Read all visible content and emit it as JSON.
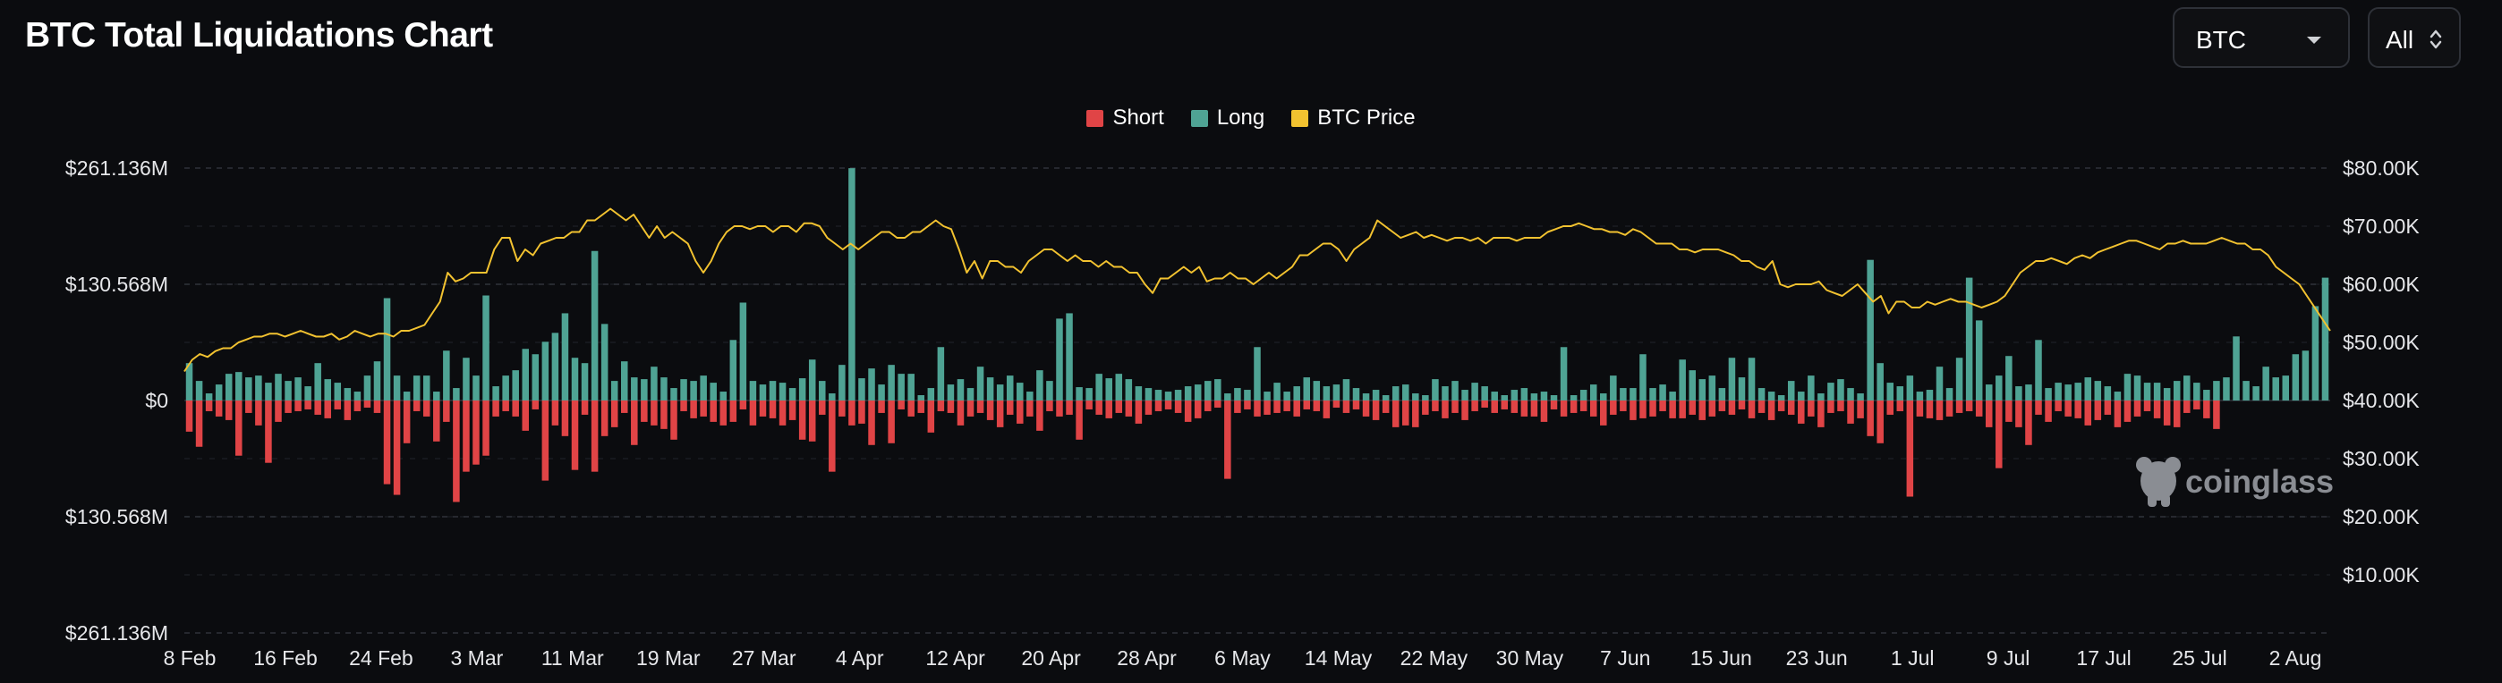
{
  "header": {
    "title": "BTC Total Liquidations Chart",
    "coin_select": "BTC",
    "range_select": "All"
  },
  "watermark": "coinglass",
  "colors": {
    "short": "#e04446",
    "long": "#4fa394",
    "price": "#f2c230",
    "grid": "#2f323a"
  },
  "chart_data": {
    "type": "bar",
    "title": "BTC Total Liquidations Chart",
    "legend_position": "top-center",
    "legend": [
      "Short",
      "Long",
      "BTC Price"
    ],
    "grid": true,
    "x_tick_labels": [
      "8 Feb",
      "16 Feb",
      "24 Feb",
      "3 Mar",
      "11 Mar",
      "19 Mar",
      "27 Mar",
      "4 Apr",
      "12 Apr",
      "20 Apr",
      "28 Apr",
      "6 May",
      "14 May",
      "22 May",
      "30 May",
      "7 Jun",
      "15 Jun",
      "23 Jun",
      "1 Jul",
      "9 Jul",
      "17 Jul",
      "25 Jul",
      "2 Aug"
    ],
    "y_left_tick_labels": [
      "$261.136M",
      "$130.568M",
      "$0",
      "$130.568M",
      "$261.136M"
    ],
    "y_left_range": [
      -261.136,
      261.136
    ],
    "y_left_unit": "M USD",
    "y_right_tick_labels": [
      "$80.00K",
      "$70.00K",
      "$60.00K",
      "$50.00K",
      "$40.00K",
      "$30.00K",
      "$20.00K",
      "$10.00K"
    ],
    "y_right_range": [
      0,
      80
    ],
    "y_right_unit": "K USD",
    "x_start": "8 Feb",
    "series": [
      {
        "name": "Long",
        "values": [
          42,
          22,
          8,
          18,
          30,
          32,
          26,
          28,
          20,
          30,
          22,
          26,
          16,
          42,
          24,
          20,
          14,
          10,
          28,
          44,
          115,
          28,
          10,
          28,
          28,
          10,
          56,
          14,
          48,
          28,
          118,
          16,
          28,
          34,
          58,
          52,
          66,
          76,
          98,
          48,
          42,
          168,
          86,
          22,
          44,
          26,
          24,
          38,
          26,
          14,
          24,
          22,
          28,
          20,
          10,
          68,
          110,
          22,
          18,
          22,
          20,
          14,
          25,
          46,
          22,
          8,
          40,
          261,
          25,
          36,
          18,
          40,
          30,
          30,
          6,
          14,
          60,
          18,
          24,
          14,
          38,
          26,
          18,
          28,
          20,
          10,
          34,
          22,
          92,
          98,
          15,
          14,
          30,
          25,
          30,
          24,
          16,
          14,
          12,
          10,
          12,
          16,
          18,
          22,
          24,
          8,
          14,
          12,
          60,
          10,
          20,
          10,
          16,
          26,
          22,
          16,
          18,
          24,
          14,
          8,
          12,
          6,
          16,
          18,
          8,
          6,
          24,
          16,
          22,
          12,
          20,
          16,
          10,
          6,
          12,
          14,
          8,
          10,
          6,
          60,
          6,
          12,
          18,
          8,
          28,
          14,
          14,
          52,
          14,
          18,
          10,
          46,
          34,
          24,
          28,
          14,
          48,
          26,
          48,
          14,
          10,
          6,
          22,
          10,
          28,
          8,
          20,
          24,
          14,
          8,
          158,
          42,
          20,
          16,
          28,
          10,
          12,
          38,
          14,
          48,
          138,
          90,
          18,
          28,
          50,
          16,
          18,
          68,
          14,
          20,
          18,
          20,
          26,
          22,
          16,
          10,
          30,
          28,
          20,
          20,
          14,
          22,
          28,
          20,
          12,
          22,
          26,
          72,
          22,
          16,
          38,
          26,
          28,
          52,
          56,
          106,
          138
        ]
      },
      {
        "name": "Short",
        "values": [
          35,
          52,
          12,
          18,
          22,
          62,
          14,
          28,
          70,
          24,
          14,
          12,
          10,
          16,
          20,
          10,
          22,
          12,
          8,
          14,
          94,
          106,
          48,
          12,
          18,
          46,
          24,
          114,
          80,
          72,
          62,
          18,
          12,
          18,
          34,
          10,
          90,
          28,
          40,
          78,
          16,
          80,
          40,
          30,
          14,
          50,
          24,
          28,
          32,
          44,
          12,
          20,
          18,
          24,
          28,
          24,
          10,
          28,
          18,
          20,
          28,
          22,
          44,
          46,
          16,
          80,
          18,
          28,
          26,
          50,
          14,
          48,
          10,
          18,
          14,
          36,
          12,
          14,
          28,
          18,
          14,
          22,
          30,
          16,
          26,
          18,
          34,
          12,
          18,
          16,
          44,
          10,
          16,
          20,
          14,
          18,
          26,
          16,
          12,
          10,
          14,
          24,
          20,
          12,
          8,
          88,
          14,
          10,
          18,
          16,
          14,
          12,
          18,
          10,
          12,
          20,
          8,
          14,
          10,
          18,
          22,
          14,
          30,
          28,
          30,
          16,
          12,
          20,
          14,
          22,
          12,
          8,
          14,
          10,
          14,
          18,
          18,
          24,
          10,
          18,
          14,
          12,
          18,
          28,
          16,
          12,
          22,
          20,
          18,
          12,
          20,
          20,
          16,
          22,
          18,
          12,
          16,
          10,
          20,
          14,
          22,
          12,
          16,
          26,
          18,
          30,
          14,
          12,
          26,
          20,
          40,
          48,
          16,
          12,
          108,
          18,
          20,
          22,
          18,
          14,
          12,
          18,
          30,
          76,
          24,
          30,
          50,
          16,
          24,
          12,
          18,
          20,
          28,
          22,
          16,
          30,
          24,
          18,
          12,
          20,
          28,
          30,
          14,
          10,
          20,
          32
        ]
      },
      {
        "name": "BTC Price",
        "values": [
          45,
          47,
          48,
          47.5,
          48.5,
          49,
          49,
          50,
          50.5,
          51,
          51,
          51.5,
          51.5,
          51,
          51.5,
          52,
          51.5,
          51,
          51,
          51.5,
          50.5,
          51,
          52,
          51.5,
          51,
          51.5,
          51.5,
          51,
          52,
          52,
          52.5,
          53,
          55,
          57,
          62,
          60.5,
          61,
          62,
          62,
          62,
          66,
          68,
          68,
          64,
          66,
          65,
          67,
          67.5,
          68,
          68,
          69,
          69,
          71,
          71,
          72,
          73,
          72,
          71,
          72,
          70,
          68,
          70,
          68,
          69,
          68,
          67,
          64,
          62,
          64,
          67,
          69,
          70,
          70,
          69.5,
          70,
          70,
          69,
          70,
          70,
          69,
          70.5,
          70.5,
          70,
          68,
          67,
          66,
          67,
          66,
          67,
          68,
          69,
          69,
          68,
          68,
          69,
          69,
          70,
          71,
          70,
          69.5,
          66,
          62,
          64,
          61,
          64,
          64,
          63,
          63,
          62,
          64,
          65,
          66,
          66,
          65,
          64,
          65,
          64,
          64,
          63,
          64,
          63,
          63,
          62,
          62,
          60,
          58.5,
          61,
          61,
          62,
          63,
          62,
          63,
          60.5,
          61,
          61,
          62,
          61,
          61,
          60,
          61,
          62,
          61,
          62,
          63,
          65,
          65,
          66,
          67,
          67,
          66,
          64,
          66,
          67,
          68,
          71,
          70,
          69,
          68,
          68.5,
          69,
          68,
          68.5,
          68,
          67.5,
          68,
          68,
          67.5,
          68,
          67,
          68,
          68,
          68,
          67.5,
          68,
          68,
          68,
          69,
          69.5,
          70,
          70,
          70.5,
          70,
          69.5,
          69.5,
          69,
          69,
          68.5,
          69.5,
          69,
          68,
          67,
          67,
          67,
          66,
          66,
          65.5,
          66,
          66,
          66,
          65.5,
          65,
          64,
          64,
          63,
          62.5,
          64,
          60,
          59.5,
          60,
          60,
          60,
          60.5,
          59,
          58.5,
          58,
          59,
          60,
          58.5,
          57,
          58,
          55,
          57,
          57,
          56,
          56,
          57,
          56.5,
          57,
          57.5,
          57,
          57,
          56.5,
          56,
          56.5,
          57,
          58,
          60,
          62,
          63,
          64,
          64,
          64.5,
          64,
          63.5,
          64.5,
          65,
          64.5,
          65.5,
          66,
          66.5,
          67,
          67.5,
          67.5,
          67,
          66.5,
          66,
          67,
          67,
          67.5,
          67,
          67,
          67,
          67.5,
          68,
          67.5,
          67,
          67,
          66,
          66,
          65,
          63,
          62,
          61,
          60,
          58,
          56,
          54,
          52
        ]
      }
    ]
  }
}
